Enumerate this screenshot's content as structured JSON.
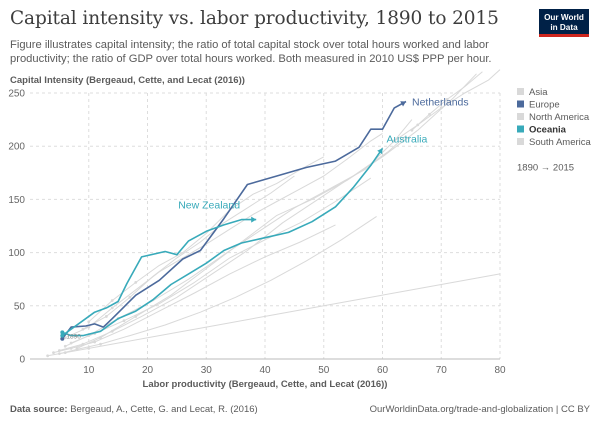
{
  "header": {
    "title": "Capital intensity vs. labor productivity, 1890 to 2015",
    "subtitle": "Figure illustrates capital intensity; the ratio of total capital stock over total hours worked and labor productivity; the ratio of GDP over total hours worked. Both measured in 2010 US$ PPP per hour.",
    "logo_line1": "Our World",
    "logo_line2": "in Data"
  },
  "footer": {
    "source_label": "Data source:",
    "source_text": "Bergeaud, A., Cette, G. and Lecat, R. (2016)",
    "url_license": "OurWorldinData.org/trade-and-globalization | CC BY"
  },
  "colors": {
    "europe": "#4c6a9c",
    "oceania": "#38aaba",
    "background_countries": "#d9d9d9",
    "axis": "#858585",
    "grid": "#dddddd"
  },
  "chart_data": {
    "type": "scatter",
    "xlabel": "Labor productivity (Bergeaud, Cette, and Lecat (2016))",
    "ylabel": "Capital Intensity (Bergeaud, Cette, and Lecat (2016))",
    "xlim": [
      0,
      80
    ],
    "ylim": [
      0,
      250
    ],
    "xticks": [
      10,
      20,
      30,
      40,
      50,
      60,
      70,
      80
    ],
    "yticks": [
      0,
      50,
      100,
      150,
      200,
      250
    ],
    "grid": "horizontal dashed",
    "legend_position": "right",
    "legend": [
      {
        "name": "Asia",
        "color": "#d9d9d9"
      },
      {
        "name": "Europe",
        "color": "#4c6a9c"
      },
      {
        "name": "North America",
        "color": "#d9d9d9"
      },
      {
        "name": "Oceania",
        "color": "#38aaba"
      },
      {
        "name": "South America",
        "color": "#d9d9d9"
      }
    ],
    "time_range": "1890 → 2015",
    "start_year_label": "1890",
    "highlighted_series": [
      {
        "name": "Netherlands",
        "region": "Europe",
        "color": "#4c6a9c",
        "points": [
          [
            5.5,
            19
          ],
          [
            7,
            30
          ],
          [
            9.5,
            31
          ],
          [
            11,
            33
          ],
          [
            12.5,
            30
          ],
          [
            14,
            38
          ],
          [
            16,
            49
          ],
          [
            18,
            60
          ],
          [
            22,
            74
          ],
          [
            26,
            94
          ],
          [
            29,
            102
          ],
          [
            33,
            132
          ],
          [
            37,
            164
          ],
          [
            42,
            172
          ],
          [
            47,
            180
          ],
          [
            52,
            186
          ],
          [
            56,
            199
          ],
          [
            58,
            216
          ],
          [
            60,
            216
          ],
          [
            62,
            236
          ],
          [
            64,
            242
          ]
        ]
      },
      {
        "name": "New Zealand",
        "region": "Oceania",
        "color": "#38aaba",
        "points": [
          [
            5.5,
            22
          ],
          [
            7,
            28
          ],
          [
            9,
            36
          ],
          [
            11,
            44
          ],
          [
            13,
            48
          ],
          [
            15,
            54
          ],
          [
            16.5,
            71
          ],
          [
            19,
            96
          ],
          [
            23,
            101
          ],
          [
            25,
            98
          ],
          [
            27,
            111
          ],
          [
            30,
            120
          ],
          [
            33,
            126
          ],
          [
            36,
            131
          ],
          [
            38.5,
            131
          ]
        ]
      },
      {
        "name": "Australia",
        "region": "Oceania",
        "color": "#38aaba",
        "points": [
          [
            5.5,
            25
          ],
          [
            7,
            22
          ],
          [
            9,
            22
          ],
          [
            12,
            26
          ],
          [
            15,
            38
          ],
          [
            18,
            45
          ],
          [
            21,
            56
          ],
          [
            24,
            70
          ],
          [
            27,
            80
          ],
          [
            30,
            90
          ],
          [
            33,
            102
          ],
          [
            36,
            109
          ],
          [
            40,
            114
          ],
          [
            44,
            119
          ],
          [
            48,
            129
          ],
          [
            52,
            143
          ],
          [
            55,
            161
          ],
          [
            58,
            182
          ],
          [
            60,
            198
          ]
        ]
      }
    ],
    "background_series": [
      [
        [
          8,
          10
        ],
        [
          12,
          20
        ],
        [
          18,
          40
        ],
        [
          24,
          60
        ],
        [
          30,
          85
        ],
        [
          36,
          110
        ],
        [
          42,
          135
        ],
        [
          48,
          150
        ],
        [
          54,
          168
        ],
        [
          60,
          190
        ],
        [
          66,
          215
        ],
        [
          72,
          245
        ],
        [
          76,
          268
        ]
      ],
      [
        [
          6,
          12
        ],
        [
          10,
          22
        ],
        [
          15,
          38
        ],
        [
          21,
          55
        ],
        [
          27,
          75
        ],
        [
          33,
          98
        ],
        [
          39,
          120
        ],
        [
          45,
          142
        ],
        [
          51,
          160
        ],
        [
          57,
          178
        ],
        [
          62,
          205
        ],
        [
          65,
          225
        ]
      ],
      [
        [
          7,
          15
        ],
        [
          11,
          24
        ],
        [
          16,
          36
        ],
        [
          22,
          52
        ],
        [
          28,
          72
        ],
        [
          34,
          95
        ],
        [
          40,
          112
        ],
        [
          46,
          128
        ],
        [
          52,
          148
        ],
        [
          58,
          170
        ]
      ],
      [
        [
          5,
          8
        ],
        [
          9,
          14
        ],
        [
          14,
          26
        ],
        [
          19,
          40
        ],
        [
          25,
          58
        ],
        [
          31,
          80
        ],
        [
          37,
          102
        ],
        [
          43,
          128
        ],
        [
          49,
          150
        ],
        [
          55,
          172
        ],
        [
          61,
          195
        ],
        [
          64,
          210
        ]
      ],
      [
        [
          4,
          6
        ],
        [
          7,
          10
        ],
        [
          11,
          16
        ],
        [
          16,
          28
        ],
        [
          22,
          45
        ],
        [
          28,
          62
        ],
        [
          34,
          80
        ],
        [
          40,
          96
        ],
        [
          46,
          110
        ],
        [
          52,
          126
        ]
      ],
      [
        [
          9,
          28
        ],
        [
          13,
          40
        ],
        [
          17,
          58
        ],
        [
          21,
          78
        ],
        [
          25,
          95
        ],
        [
          29,
          110
        ],
        [
          33,
          128
        ],
        [
          37,
          142
        ],
        [
          41,
          156
        ],
        [
          45,
          172
        ]
      ],
      [
        [
          10,
          35
        ],
        [
          14,
          55
        ],
        [
          18,
          72
        ],
        [
          22,
          88
        ],
        [
          26,
          100
        ],
        [
          30,
          118
        ],
        [
          34,
          140
        ],
        [
          38,
          155
        ],
        [
          42,
          165
        ],
        [
          46,
          178
        ],
        [
          50,
          190
        ]
      ],
      [
        [
          6,
          20
        ],
        [
          10,
          30
        ],
        [
          14,
          48
        ],
        [
          18,
          65
        ],
        [
          22,
          82
        ],
        [
          26,
          95
        ],
        [
          30,
          108
        ],
        [
          34,
          122
        ],
        [
          38,
          136
        ],
        [
          42,
          148
        ],
        [
          46,
          160
        ],
        [
          50,
          172
        ],
        [
          54,
          188
        ],
        [
          58,
          205
        ],
        [
          60,
          212
        ]
      ],
      [
        [
          3,
          3
        ],
        [
          6,
          6
        ],
        [
          10,
          10
        ],
        [
          16,
          16
        ],
        [
          24,
          24
        ],
        [
          32,
          32
        ],
        [
          40,
          40
        ],
        [
          48,
          48
        ],
        [
          56,
          56
        ],
        [
          64,
          64
        ],
        [
          72,
          72
        ],
        [
          80,
          80
        ]
      ],
      [
        [
          5,
          5
        ],
        [
          8,
          9
        ],
        [
          12,
          14
        ],
        [
          17,
          22
        ],
        [
          23,
          32
        ],
        [
          29,
          44
        ],
        [
          35,
          58
        ],
        [
          41,
          74
        ],
        [
          47,
          92
        ],
        [
          53,
          112
        ],
        [
          59,
          134
        ]
      ],
      [
        [
          62,
          205
        ],
        [
          66,
          220
        ],
        [
          70,
          236
        ],
        [
          74,
          250
        ],
        [
          78,
          262
        ],
        [
          80,
          272
        ]
      ],
      [
        [
          65,
          215
        ],
        [
          68,
          230
        ],
        [
          71,
          244
        ],
        [
          74,
          256
        ],
        [
          77,
          270
        ]
      ]
    ]
  }
}
